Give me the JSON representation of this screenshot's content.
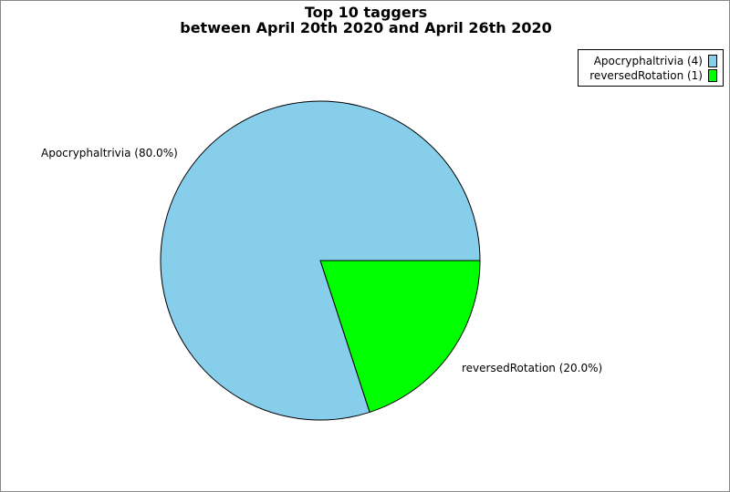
{
  "chart_data": {
    "type": "pie",
    "title": "Top 10 taggers",
    "subtitle": "between April 20th 2020 and April 26th 2020",
    "slices": [
      {
        "name": "Apocryphaltrivia",
        "value": 4,
        "percent": 80.0,
        "color": "#87ceeb",
        "label": "Apocryphaltrivia (80.0%)",
        "legend": "Apocryphaltrivia (4)"
      },
      {
        "name": "reversedRotation",
        "value": 1,
        "percent": 20.0,
        "color": "#00ff00",
        "label": "reversedRotation (20.0%)",
        "legend": "reversedRotation (1)"
      }
    ],
    "legend_position": "top-right"
  }
}
